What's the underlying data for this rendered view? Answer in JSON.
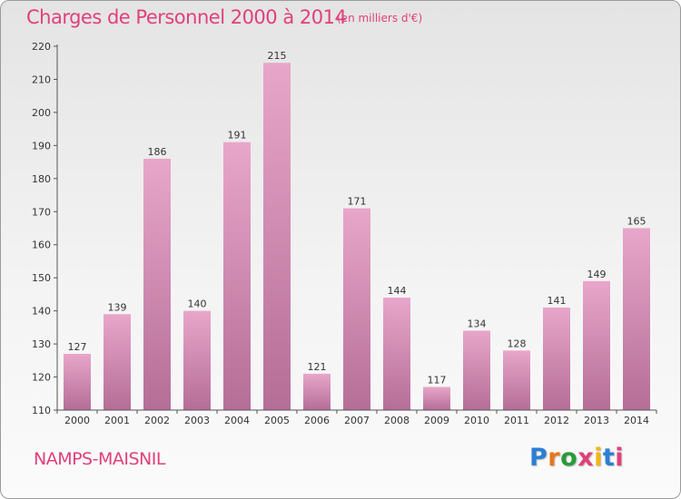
{
  "header": {
    "title": "Charges de Personnel 2000 à 2014",
    "subtitle": "(en milliers d'€)"
  },
  "footer": {
    "commune": "NAMPS-MAISNIL",
    "brand": "Proxiti"
  },
  "colors": {
    "title": "#e0407a",
    "bar_top": "#e8a6ca",
    "bar_bottom": "#b56e96",
    "brand_letters": [
      "#2a7fd4",
      "#e8761c",
      "#2a9a3a",
      "#e0407a",
      "#f2b51c",
      "#2a7fd4",
      "#e0407a"
    ]
  },
  "chart_data": {
    "type": "bar",
    "categories": [
      "2000",
      "2001",
      "2002",
      "2003",
      "2004",
      "2005",
      "2006",
      "2007",
      "2008",
      "2009",
      "2010",
      "2011",
      "2012",
      "2013",
      "2014"
    ],
    "values": [
      127,
      139,
      186,
      140,
      191,
      215,
      121,
      171,
      144,
      117,
      134,
      128,
      141,
      149,
      165
    ],
    "title": "Charges de Personnel 2000 à 2014",
    "subtitle": "(en milliers d'€)",
    "ylim": [
      110,
      220
    ],
    "yticks": [
      110,
      120,
      130,
      140,
      150,
      160,
      170,
      180,
      190,
      200,
      210,
      220
    ],
    "grid": false,
    "data_labels": true
  }
}
